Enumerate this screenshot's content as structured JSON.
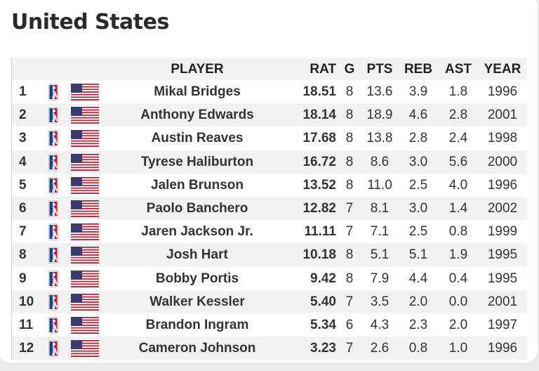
{
  "title": "United States",
  "colors": {
    "nba_blue": "#1d428a",
    "nba_red": "#c8102e",
    "flag_red": "#b22234",
    "flag_blue": "#3c3b6e"
  },
  "columns": {
    "player": "PLAYER",
    "rat": "RAT",
    "g": "G",
    "pts": "PTS",
    "reb": "REB",
    "ast": "AST",
    "year": "YEAR"
  },
  "rows": [
    {
      "rank": "1",
      "player": "Mikal Bridges",
      "rat": "18.51",
      "g": "8",
      "pts": "13.6",
      "reb": "3.9",
      "ast": "1.8",
      "year": "1996"
    },
    {
      "rank": "2",
      "player": "Anthony Edwards",
      "rat": "18.14",
      "g": "8",
      "pts": "18.9",
      "reb": "4.6",
      "ast": "2.8",
      "year": "2001"
    },
    {
      "rank": "3",
      "player": "Austin Reaves",
      "rat": "17.68",
      "g": "8",
      "pts": "13.8",
      "reb": "2.8",
      "ast": "2.4",
      "year": "1998"
    },
    {
      "rank": "4",
      "player": "Tyrese Haliburton",
      "rat": "16.72",
      "g": "8",
      "pts": "8.6",
      "reb": "3.0",
      "ast": "5.6",
      "year": "2000"
    },
    {
      "rank": "5",
      "player": "Jalen Brunson",
      "rat": "13.52",
      "g": "8",
      "pts": "11.0",
      "reb": "2.5",
      "ast": "4.0",
      "year": "1996"
    },
    {
      "rank": "6",
      "player": "Paolo Banchero",
      "rat": "12.82",
      "g": "7",
      "pts": "8.1",
      "reb": "3.0",
      "ast": "1.4",
      "year": "2002"
    },
    {
      "rank": "7",
      "player": "Jaren Jackson Jr.",
      "rat": "11.11",
      "g": "7",
      "pts": "7.1",
      "reb": "2.5",
      "ast": "0.8",
      "year": "1999"
    },
    {
      "rank": "8",
      "player": "Josh Hart",
      "rat": "10.18",
      "g": "8",
      "pts": "5.1",
      "reb": "5.1",
      "ast": "1.9",
      "year": "1995"
    },
    {
      "rank": "9",
      "player": "Bobby Portis",
      "rat": "9.42",
      "g": "8",
      "pts": "7.9",
      "reb": "4.4",
      "ast": "0.4",
      "year": "1995"
    },
    {
      "rank": "10",
      "player": "Walker Kessler",
      "rat": "5.40",
      "g": "7",
      "pts": "3.5",
      "reb": "2.0",
      "ast": "0.0",
      "year": "2001"
    },
    {
      "rank": "11",
      "player": "Brandon Ingram",
      "rat": "5.34",
      "g": "6",
      "pts": "4.3",
      "reb": "2.3",
      "ast": "2.0",
      "year": "1997"
    },
    {
      "rank": "12",
      "player": "Cameron Johnson",
      "rat": "3.23",
      "g": "7",
      "pts": "2.6",
      "reb": "0.8",
      "ast": "1.0",
      "year": "1996"
    }
  ]
}
